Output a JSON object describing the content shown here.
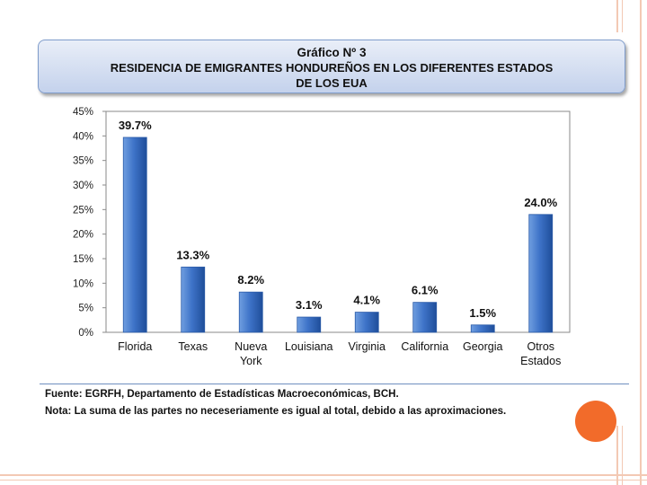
{
  "title": {
    "line1_prefix": "Gráfico Nº 3",
    "line2": "RESIDENCIA DE EMIGRANTES HONDUREÑOS EN LOS DIFERENTES ESTADOS",
    "line3": "DE LOS EUA"
  },
  "chart_data": {
    "type": "bar",
    "title": "Gráfico Nº 3 — RESIDENCIA DE EMIGRANTES HONDUREÑOS EN LOS DIFERENTES ESTADOS DE LOS EUA",
    "categories": [
      [
        "Florida"
      ],
      [
        "Texas"
      ],
      [
        "Nueva",
        "York"
      ],
      [
        "Louisiana"
      ],
      [
        "Virginia"
      ],
      [
        "California"
      ],
      [
        "Georgia"
      ],
      [
        "Otros",
        "Estados"
      ]
    ],
    "values": [
      39.7,
      13.3,
      8.2,
      3.1,
      4.1,
      6.1,
      1.5,
      24.0
    ],
    "data_labels": [
      "39.7%",
      "13.3%",
      "8.2%",
      "3.1%",
      "4.1%",
      "6.1%",
      "1.5%",
      "24.0%"
    ],
    "yticks": [
      "0%",
      "5%",
      "10%",
      "15%",
      "20%",
      "25%",
      "30%",
      "35%",
      "40%",
      "45%"
    ],
    "ylim": [
      0,
      45
    ],
    "xlabel": "",
    "ylabel": "",
    "grid": false,
    "colors": {
      "bar_light": "#6f9ee0",
      "bar_mid": "#3e73c8",
      "bar_dark": "#1f4e9a"
    }
  },
  "notes": {
    "source": "Fuente: EGRFH, Departamento de Estadísticas Macroeconómicas, BCH.",
    "note": "Nota: La suma de las partes no neceseriamente es igual al total, debido a las aproximaciones."
  }
}
